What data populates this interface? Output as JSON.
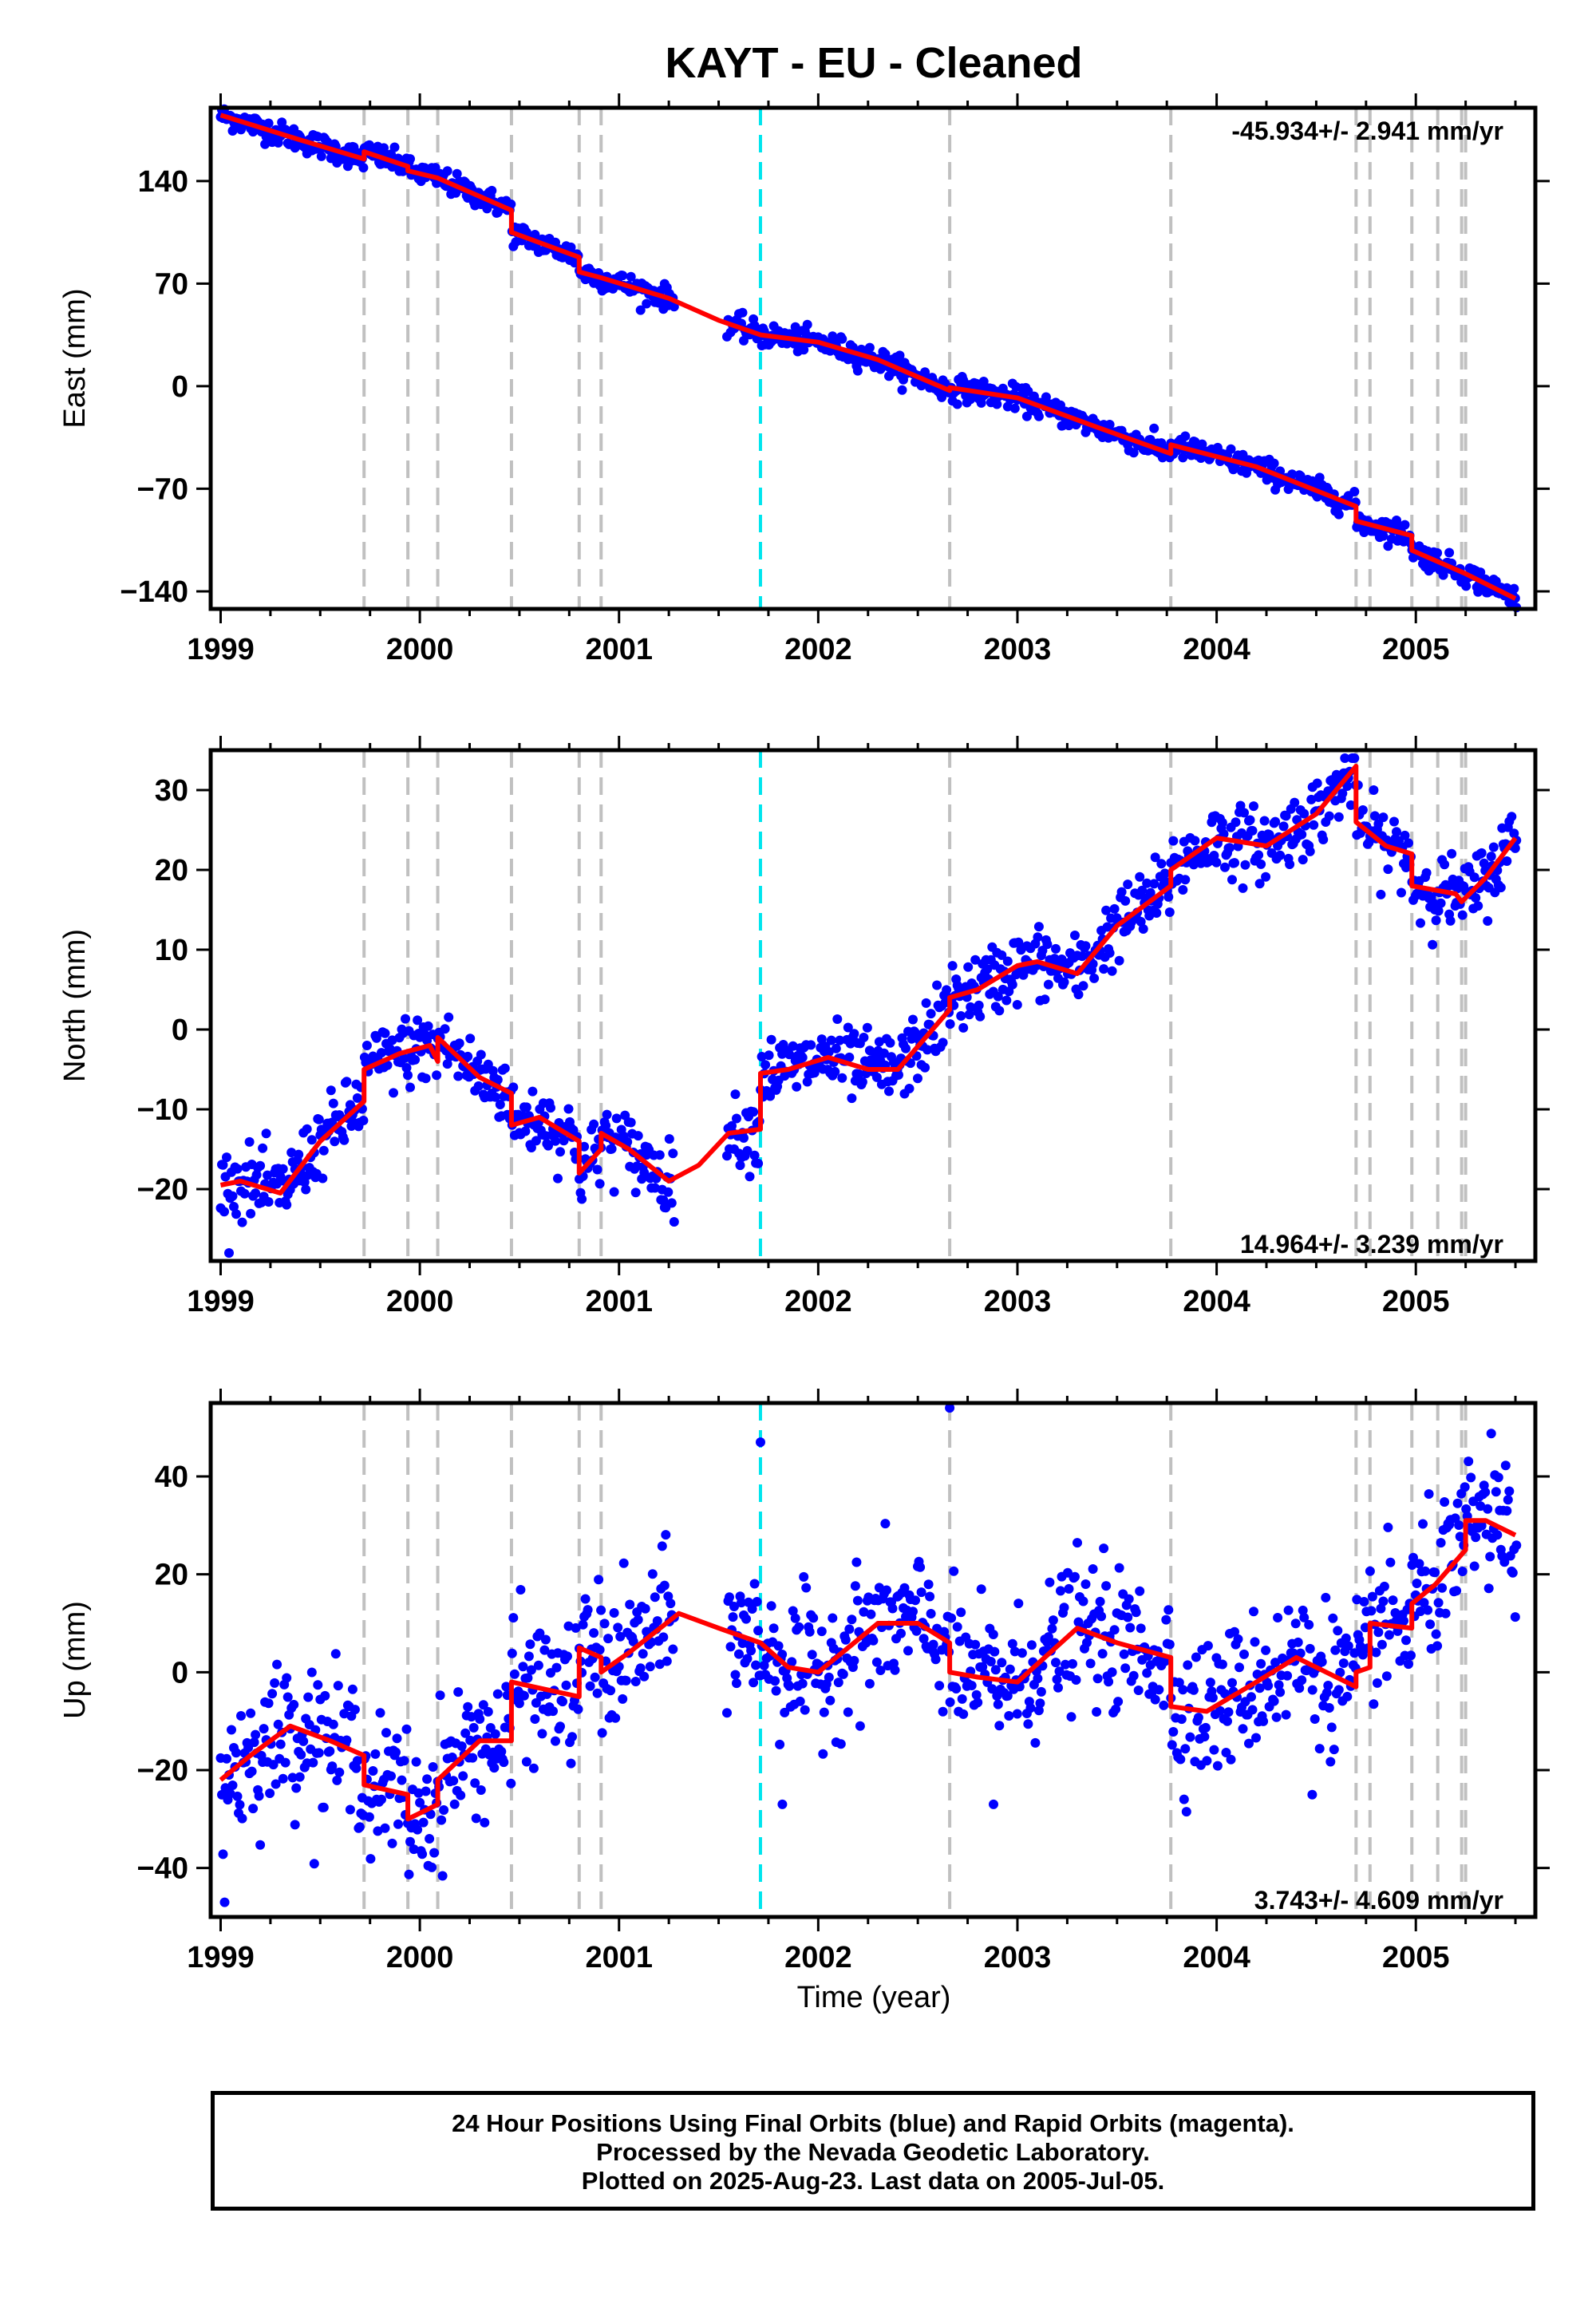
{
  "chart_data": {
    "type": "scatter",
    "title": "KAYT  - EU - Cleaned",
    "xlabel": "Time (year)",
    "xlim": [
      1998.95,
      2005.6
    ],
    "x_ticks": [
      1999,
      2000,
      2001,
      2002,
      2003,
      2004,
      2005
    ],
    "x_tick_labels": [
      "1999",
      "2000",
      "2001",
      "2002",
      "2003",
      "2004",
      "2005"
    ],
    "colors": {
      "data": "#0000ff",
      "model": "#ff0000",
      "equipment_change": "#c0c0c0",
      "earthquake": "#00e5ee",
      "frame": "#000000"
    },
    "event_lines": {
      "equipment": [
        1999.72,
        1999.94,
        2000.09,
        2000.46,
        2000.8,
        2000.91,
        2002.66,
        2003.77,
        2004.7,
        2004.77,
        2004.98,
        2005.11,
        2005.23,
        2005.25
      ],
      "earthquake": [
        2001.71
      ]
    },
    "data_gap": [
      2001.28,
      2001.54
    ],
    "panels": [
      {
        "id": "east",
        "ylabel": "East (mm)",
        "ylim": [
          -152,
          190
        ],
        "y_ticks": [
          140,
          70,
          0,
          -70,
          -140
        ],
        "y_tick_labels": [
          "140",
          "70",
          "0",
          "−70",
          "−140"
        ],
        "rate_text": "-45.934+/- 2.941 mm/yr",
        "rate_position": "top-right",
        "rate_mm_per_yr": -45.934,
        "rate_sigma": 2.941,
        "model_x": [
          1999.0,
          1999.4,
          1999.72,
          1999.72,
          1999.94,
          1999.94,
          2000.09,
          2000.46,
          2000.46,
          2000.8,
          2000.8,
          2000.91,
          2001.25,
          2001.5,
          2001.71,
          2002.0,
          2002.3,
          2002.66,
          2002.66,
          2003.0,
          2003.4,
          2003.77,
          2003.77,
          2004.2,
          2004.7,
          2004.7,
          2004.98,
          2004.98,
          2005.25,
          2005.5
        ],
        "model_y": [
          185,
          168,
          155,
          160,
          150,
          147,
          142,
          120,
          105,
          88,
          78,
          74,
          60,
          45,
          35,
          30,
          18,
          -3,
          -1,
          -8,
          -28,
          -46,
          -40,
          -55,
          -82,
          -92,
          -102,
          -112,
          -128,
          -145
        ],
        "scatter_noise_mm": 4
      },
      {
        "id": "north",
        "ylabel": "North (mm)",
        "ylim": [
          -29,
          35
        ],
        "y_ticks": [
          30,
          20,
          10,
          0,
          -10,
          -20
        ],
        "y_tick_labels": [
          "30",
          "20",
          "10",
          "0",
          "−10",
          "−20"
        ],
        "rate_text": "14.964+/- 3.239 mm/yr",
        "rate_position": "bottom-right",
        "rate_mm_per_yr": 14.964,
        "rate_sigma": 3.239,
        "model_x": [
          1999.0,
          1999.1,
          1999.3,
          1999.5,
          1999.72,
          1999.72,
          1999.9,
          2000.05,
          2000.09,
          2000.09,
          2000.3,
          2000.46,
          2000.46,
          2000.6,
          2000.8,
          2000.8,
          2000.91,
          2000.91,
          2001.05,
          2001.25,
          2001.4,
          2001.55,
          2001.71,
          2001.71,
          2001.85,
          2002.05,
          2002.25,
          2002.4,
          2002.66,
          2002.66,
          2002.8,
          2003.0,
          2003.1,
          2003.3,
          2003.5,
          2003.77,
          2003.77,
          2004.0,
          2004.25,
          2004.5,
          2004.7,
          2004.7,
          2004.85,
          2004.98,
          2004.98,
          2005.2,
          2005.23,
          2005.35,
          2005.5
        ],
        "model_y": [
          -19.5,
          -19,
          -20.5,
          -14,
          -9,
          -5,
          -3,
          -2,
          -4,
          -1,
          -6,
          -8,
          -12,
          -11,
          -14,
          -18,
          -15,
          -13,
          -15,
          -19,
          -17,
          -13,
          -12.5,
          -5.5,
          -5,
          -3.5,
          -5,
          -5,
          2.5,
          4,
          5,
          8,
          8.5,
          7,
          13,
          18,
          20,
          24,
          23,
          27,
          33,
          26,
          23,
          22,
          18,
          17,
          16,
          19,
          24
        ],
        "scatter_noise_mm": 2.2
      },
      {
        "id": "up",
        "ylabel": "Up (mm)",
        "ylim": [
          -50,
          55
        ],
        "y_ticks": [
          40,
          20,
          0,
          -20,
          -40
        ],
        "y_tick_labels": [
          "40",
          "20",
          "0",
          "−20",
          "−40"
        ],
        "rate_text": "3.743+/- 4.609 mm/yr",
        "rate_position": "bottom-right",
        "rate_mm_per_yr": 3.743,
        "rate_sigma": 4.609,
        "model_x": [
          1999.0,
          1999.15,
          1999.35,
          1999.55,
          1999.72,
          1999.72,
          1999.94,
          1999.94,
          2000.09,
          2000.09,
          2000.3,
          2000.46,
          2000.46,
          2000.8,
          2000.8,
          2000.91,
          2000.91,
          2001.05,
          2001.3,
          2001.5,
          2001.71,
          2001.85,
          2002.0,
          2002.3,
          2002.5,
          2002.66,
          2002.66,
          2002.8,
          2003.0,
          2003.3,
          2003.5,
          2003.77,
          2003.77,
          2003.95,
          2004.2,
          2004.4,
          2004.7,
          2004.7,
          2004.77,
          2004.77,
          2004.98,
          2004.98,
          2005.1,
          2005.25,
          2005.25,
          2005.35,
          2005.5
        ],
        "model_y": [
          -22,
          -17,
          -11,
          -14,
          -17,
          -23,
          -25,
          -30,
          -27,
          -22,
          -14,
          -14,
          -2,
          -5,
          5,
          3,
          0,
          4,
          12,
          9,
          6,
          1,
          0,
          10,
          10,
          6,
          0,
          -1,
          -2,
          9,
          6,
          3,
          -7,
          -8,
          -2,
          3,
          -3,
          0,
          1,
          10,
          9,
          14,
          18,
          25,
          31,
          31,
          28
        ],
        "scatter_noise_mm": 7,
        "outliers": [
          [
            2001.71,
            47
          ],
          [
            2002.66,
            54
          ],
          [
            1999.02,
            -47
          ],
          [
            2004.48,
            -25
          ],
          [
            2002.88,
            -27
          ],
          [
            2001.82,
            -27
          ]
        ]
      }
    ]
  },
  "footer": {
    "line1": "24 Hour Positions Using Final Orbits (blue) and Rapid Orbits (magenta).",
    "line2": "Processed by the Nevada Geodetic Laboratory.",
    "line3": "Plotted on 2025-Aug-23. Last data on 2005-Jul-05."
  }
}
